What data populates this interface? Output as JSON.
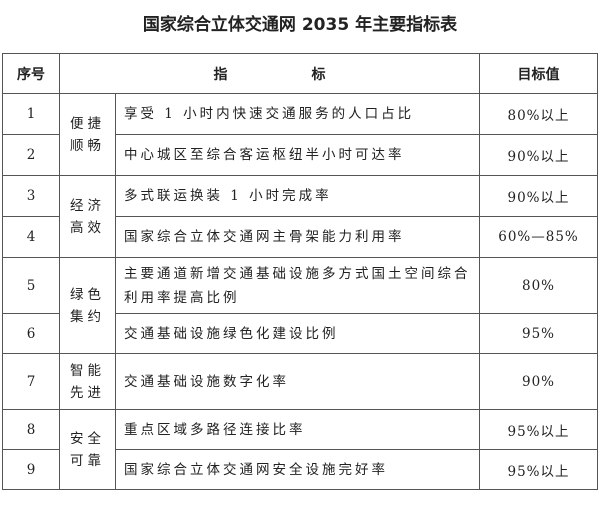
{
  "title": "国家综合立体交通网 2035 年主要指标表",
  "headers": {
    "no": "序号",
    "indicator": "指　　　　　　标",
    "target": "目标值"
  },
  "categories": [
    "便捷顺畅",
    "经济高效",
    "绿色集约",
    "智能先进",
    "安全可靠"
  ],
  "rows": [
    {
      "no": "1",
      "indicator": "享受 1 小时内快速交通服务的人口占比",
      "target": "80%以上"
    },
    {
      "no": "2",
      "indicator": "中心城区至综合客运枢纽半小时可达率",
      "target": "90%以上"
    },
    {
      "no": "3",
      "indicator": "多式联运换装 1 小时完成率",
      "target": "90%以上"
    },
    {
      "no": "4",
      "indicator": "国家综合立体交通网主骨架能力利用率",
      "target": "60%—85%"
    },
    {
      "no": "5",
      "indicator": "主要通道新增交通基础设施多方式国土空间综合利用率提高比例",
      "target": "80%"
    },
    {
      "no": "6",
      "indicator": "交通基础设施绿色化建设比例",
      "target": "95%"
    },
    {
      "no": "7",
      "indicator": "交通基础设施数字化率",
      "target": "90%"
    },
    {
      "no": "8",
      "indicator": "重点区域多路径连接比率",
      "target": "95%以上"
    },
    {
      "no": "9",
      "indicator": "国家综合立体交通网安全设施完好率",
      "target": "95%以上"
    }
  ]
}
